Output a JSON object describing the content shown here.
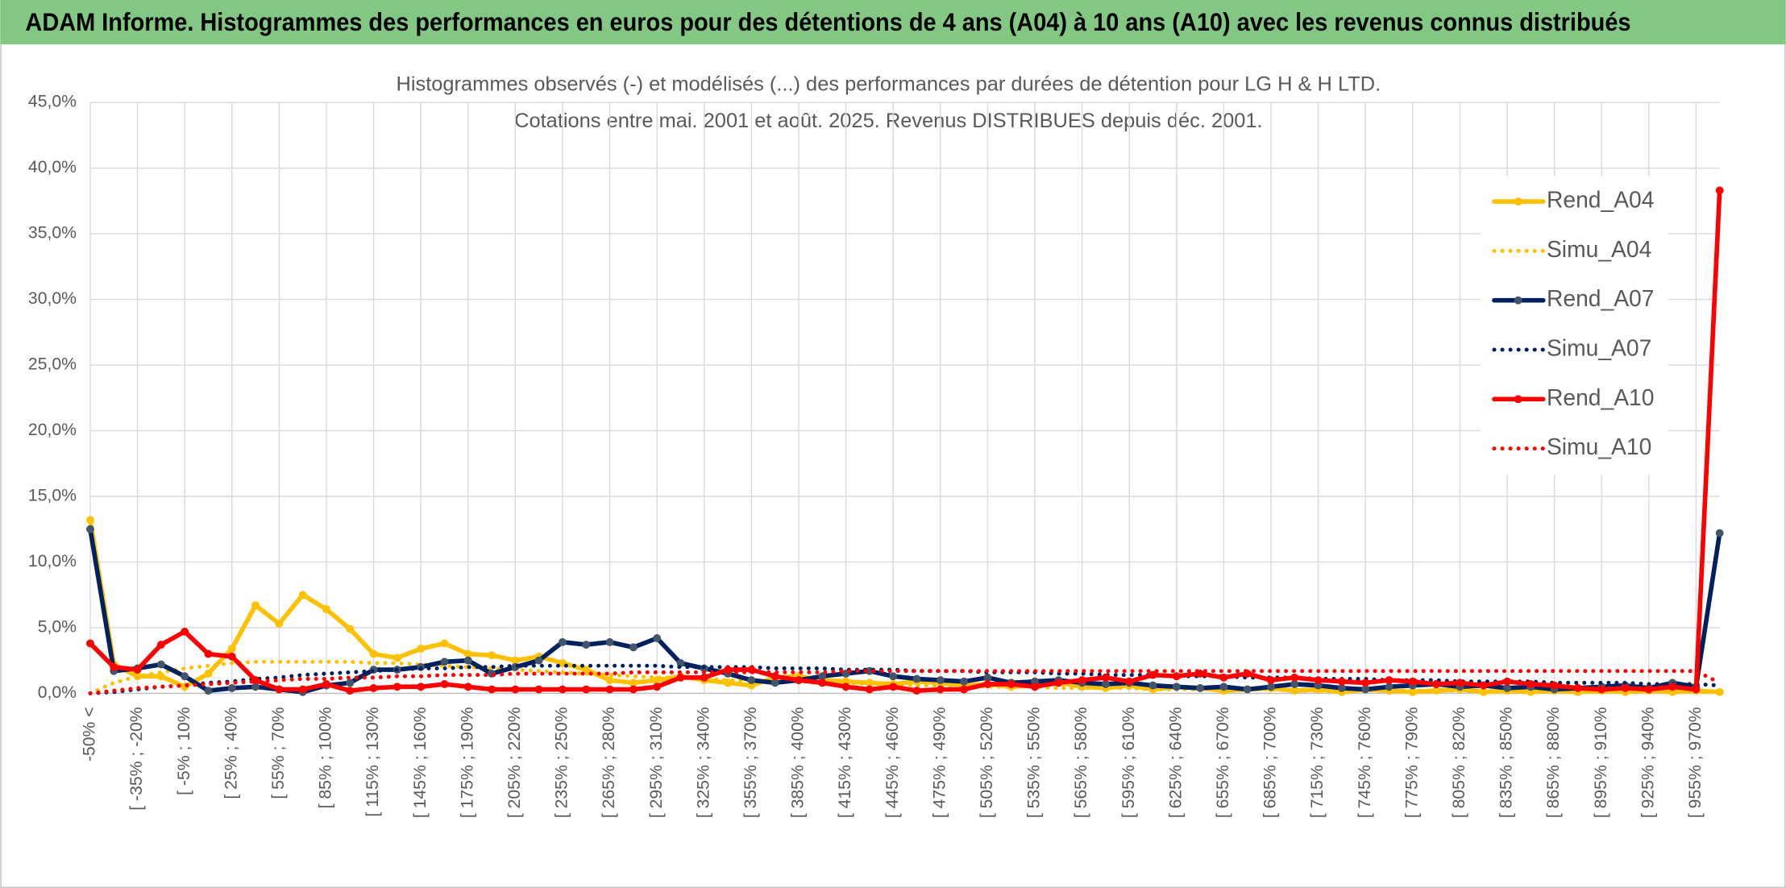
{
  "header": {
    "title": "ADAM Informe. Histogrammes des performances en euros pour des détentions de 4 ans (A04) à 10 ans (A10) avec les revenus connus distribués"
  },
  "chart_data": {
    "type": "line",
    "title": "Histogrammes observés (-) et modélisés (...) des performances par durées de détention pour LG H & H LTD.",
    "subtitle": "Cotations entre mai. 2001 et août. 2025. Revenus DISTRIBUES depuis déc. 2001.",
    "categories": [
      "-50% <",
      null,
      "[ -35% ; -20%",
      null,
      "[ -5% ; 10%",
      null,
      "[ 25% ; 40%",
      null,
      "[ 55% ; 70%",
      null,
      "[ 85% ; 100%",
      null,
      "[ 115% ; 130%",
      null,
      "[ 145% ; 160%",
      null,
      "[ 175% ; 190%",
      null,
      "[ 205% ; 220%",
      null,
      "[ 235% ; 250%",
      null,
      "[ 265% ; 280%",
      null,
      "[ 295% ; 310%",
      null,
      "[ 325% ; 340%",
      null,
      "[ 355% ; 370%",
      null,
      "[ 385% ; 400%",
      null,
      "[ 415% ; 430%",
      null,
      "[ 445% ; 460%",
      null,
      "[ 475% ; 490%",
      null,
      "[ 505% ; 520%",
      null,
      "[ 535% ; 550%",
      null,
      "[ 565% ; 580%",
      null,
      "[ 595% ; 610%",
      null,
      "[ 625% ; 640%",
      null,
      "[ 655% ; 670%",
      null,
      "[ 685% ; 700%",
      null,
      "[ 715% ; 730%",
      null,
      "[ 745% ; 760%",
      null,
      "[ 775% ; 790%",
      null,
      "[ 805% ; 820%",
      null,
      "[ 835% ; 850%",
      null,
      "[ 865% ; 880%",
      null,
      "[ 895% ; 910%",
      null,
      "[ 925% ; 940%",
      null,
      "[ 955% ; 970%",
      null
    ],
    "series": [
      {
        "name": "Rend_A04",
        "color": "#ffc000",
        "style": "solid",
        "marker": true,
        "marker_color": "#ffc000",
        "values": [
          13.2,
          2.2,
          1.3,
          1.3,
          0.5,
          1.5,
          3.4,
          6.7,
          5.3,
          7.5,
          6.4,
          4.9,
          3.0,
          2.7,
          3.4,
          3.8,
          3.0,
          2.9,
          2.5,
          2.8,
          2.3,
          1.8,
          1.0,
          0.8,
          1.0,
          1.3,
          1.0,
          0.8,
          0.6,
          1.2,
          1.3,
          1.0,
          0.9,
          0.8,
          0.7,
          0.9,
          0.8,
          0.6,
          0.7,
          0.5,
          0.6,
          0.8,
          0.5,
          0.4,
          0.6,
          0.3,
          0.5,
          0.4,
          0.2,
          0.3,
          0.4,
          0.2,
          0.3,
          0.1,
          0.3,
          0.2,
          0.1,
          0.2,
          0.3,
          0.1,
          0.2,
          0.1,
          0.2,
          0.1,
          0.2,
          0.1,
          0.2,
          0.1,
          0.2,
          0.1
        ]
      },
      {
        "name": "Simu_A04",
        "color": "#ffc000",
        "style": "dotted",
        "marker": false,
        "values": [
          0,
          0.8,
          1.3,
          1.6,
          1.9,
          2.1,
          2.3,
          2.4,
          2.4,
          2.4,
          2.4,
          2.4,
          2.3,
          2.3,
          2.2,
          2.1,
          2.0,
          1.9,
          1.8,
          1.7,
          1.6,
          1.5,
          1.4,
          1.3,
          1.2,
          1.2,
          1.1,
          1.0,
          1.0,
          0.9,
          0.9,
          0.8,
          0.8,
          0.7,
          0.7,
          0.6,
          0.6,
          0.6,
          0.5,
          0.5,
          0.5,
          0.4,
          0.4,
          0.4,
          0.4,
          0.3,
          0.3,
          0.3,
          0.3,
          0.3,
          0.3,
          0.2,
          0.2,
          0.2,
          0.2,
          0.2,
          0.2,
          0.2,
          0.2,
          0.2,
          0.1,
          0.1,
          0.1,
          0.1,
          0.1,
          0.1,
          0.1,
          0.1,
          0.1,
          0.1
        ]
      },
      {
        "name": "Rend_A07",
        "color": "#002060",
        "style": "solid",
        "marker": true,
        "marker_color": "#44546a",
        "values": [
          12.5,
          1.7,
          1.9,
          2.2,
          1.3,
          0.2,
          0.4,
          0.5,
          0.3,
          0.1,
          0.6,
          0.8,
          1.8,
          1.8,
          2.0,
          2.4,
          2.5,
          1.5,
          2.0,
          2.5,
          3.9,
          3.7,
          3.9,
          3.5,
          4.2,
          2.3,
          1.9,
          1.5,
          1.0,
          0.8,
          1.0,
          1.3,
          1.5,
          1.7,
          1.3,
          1.1,
          1.0,
          0.9,
          1.2,
          0.8,
          0.9,
          1.0,
          0.8,
          0.7,
          0.8,
          0.6,
          0.5,
          0.4,
          0.5,
          0.3,
          0.5,
          0.7,
          0.6,
          0.4,
          0.3,
          0.5,
          0.6,
          0.7,
          0.5,
          0.6,
          0.4,
          0.5,
          0.3,
          0.4,
          0.5,
          0.6,
          0.4,
          0.8,
          0.5,
          12.2
        ]
      },
      {
        "name": "Simu_A07",
        "color": "#002060",
        "style": "dotted",
        "marker": false,
        "values": [
          0,
          0.1,
          0.3,
          0.5,
          0.6,
          0.8,
          0.9,
          1.1,
          1.2,
          1.4,
          1.5,
          1.6,
          1.7,
          1.8,
          1.9,
          1.9,
          2.0,
          2.0,
          2.1,
          2.1,
          2.1,
          2.1,
          2.1,
          2.1,
          2.1,
          2.0,
          2.0,
          2.0,
          2.0,
          1.9,
          1.9,
          1.9,
          1.8,
          1.8,
          1.8,
          1.7,
          1.7,
          1.7,
          1.6,
          1.6,
          1.6,
          1.5,
          1.5,
          1.4,
          1.4,
          1.4,
          1.3,
          1.3,
          1.3,
          1.2,
          1.2,
          1.2,
          1.1,
          1.1,
          1.1,
          1.0,
          1.0,
          1.0,
          0.9,
          0.9,
          0.9,
          0.9,
          0.8,
          0.8,
          0.8,
          0.8,
          0.7,
          0.7,
          0.7,
          0.6
        ]
      },
      {
        "name": "Rend_A10",
        "color": "#ff0000",
        "style": "solid",
        "marker": true,
        "marker_color": "#ff0000",
        "values": [
          3.8,
          2.0,
          1.8,
          3.7,
          4.7,
          3.0,
          2.8,
          1.0,
          0.3,
          0.3,
          0.7,
          0.2,
          0.4,
          0.5,
          0.5,
          0.7,
          0.5,
          0.3,
          0.3,
          0.3,
          0.3,
          0.3,
          0.3,
          0.3,
          0.5,
          1.2,
          1.2,
          1.8,
          1.8,
          1.3,
          1.0,
          0.8,
          0.5,
          0.3,
          0.5,
          0.2,
          0.3,
          0.3,
          0.7,
          0.7,
          0.5,
          0.8,
          1.0,
          1.2,
          0.9,
          1.4,
          1.3,
          1.5,
          1.2,
          1.5,
          1.0,
          1.2,
          1.0,
          0.9,
          0.8,
          1.0,
          0.9,
          0.7,
          0.8,
          0.6,
          0.9,
          0.7,
          0.6,
          0.4,
          0.3,
          0.4,
          0.3,
          0.5,
          0.3,
          38.3
        ]
      },
      {
        "name": "Simu_A10",
        "color": "#ff0000",
        "style": "dotted",
        "marker": false,
        "values": [
          0,
          0.2,
          0.4,
          0.5,
          0.6,
          0.7,
          0.8,
          0.9,
          1.0,
          1.1,
          1.1,
          1.2,
          1.2,
          1.3,
          1.3,
          1.4,
          1.4,
          1.4,
          1.5,
          1.5,
          1.5,
          1.5,
          1.5,
          1.6,
          1.6,
          1.6,
          1.6,
          1.6,
          1.6,
          1.6,
          1.6,
          1.6,
          1.7,
          1.7,
          1.7,
          1.7,
          1.7,
          1.7,
          1.7,
          1.7,
          1.7,
          1.7,
          1.7,
          1.7,
          1.7,
          1.7,
          1.7,
          1.7,
          1.7,
          1.7,
          1.7,
          1.7,
          1.7,
          1.7,
          1.7,
          1.7,
          1.7,
          1.7,
          1.7,
          1.7,
          1.7,
          1.7,
          1.7,
          1.7,
          1.7,
          1.7,
          1.7,
          1.7,
          1.7,
          0.8
        ]
      }
    ],
    "ylim": [
      0,
      45
    ],
    "yticks": [
      {
        "value": 0,
        "label": "0,0%"
      },
      {
        "value": 5,
        "label": "5,0%"
      },
      {
        "value": 10,
        "label": "10,0%"
      },
      {
        "value": 15,
        "label": "15,0%"
      },
      {
        "value": 20,
        "label": "20,0%"
      },
      {
        "value": 25,
        "label": "25,0%"
      },
      {
        "value": 30,
        "label": "30,0%"
      },
      {
        "value": 35,
        "label": "35,0%"
      },
      {
        "value": 40,
        "label": "40,0%"
      },
      {
        "value": 45,
        "label": "45,0%"
      }
    ],
    "grid": true,
    "legend": "top-right"
  }
}
